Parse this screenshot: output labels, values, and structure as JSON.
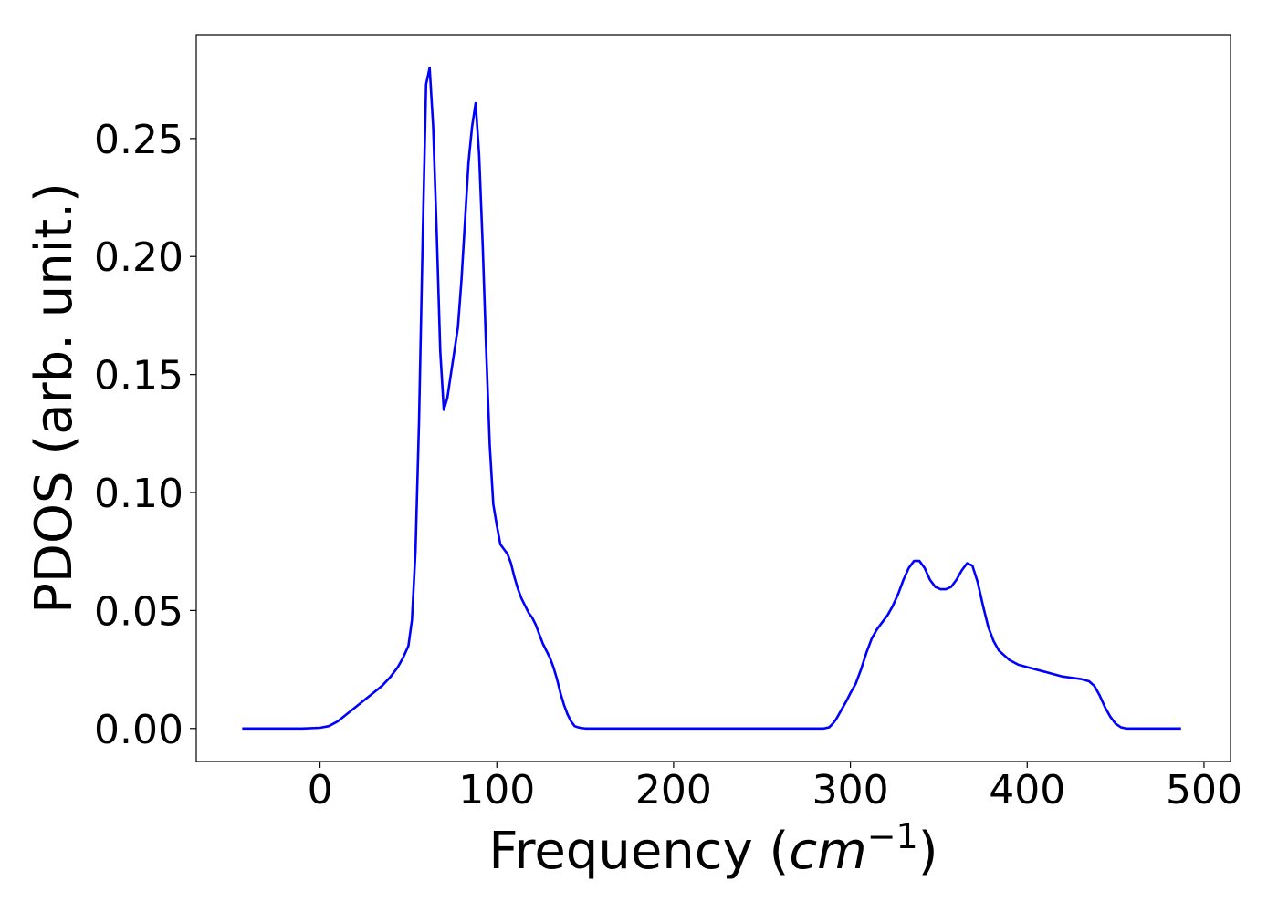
{
  "chart_data": {
    "type": "line",
    "title": "",
    "xlabel": {
      "prefix": "Frequency (",
      "unit_base": "cm",
      "unit_exponent": "−1",
      "suffix": ")"
    },
    "ylabel": "PDOS (arb. unit.)",
    "xlim": [
      -70,
      515
    ],
    "ylim": [
      -0.014,
      0.294
    ],
    "x_ticks": [
      0,
      100,
      200,
      300,
      400,
      500
    ],
    "x_tick_labels": [
      "0",
      "100",
      "200",
      "300",
      "400",
      "500"
    ],
    "y_ticks": [
      0.0,
      0.05,
      0.1,
      0.15,
      0.2,
      0.25
    ],
    "y_tick_labels": [
      "0.00",
      "0.05",
      "0.10",
      "0.15",
      "0.20",
      "0.25"
    ],
    "grid": false,
    "legend": null,
    "series": [
      {
        "color": "#0000ff",
        "x": [
          -44,
          -10,
          0,
          5,
          10,
          15,
          20,
          25,
          30,
          35,
          40,
          44,
          47,
          50,
          52,
          54,
          56,
          58,
          60,
          62,
          64,
          66,
          68,
          70,
          72,
          74,
          76,
          78,
          80,
          82,
          84,
          86,
          88,
          90,
          92,
          94,
          96,
          98,
          100,
          102,
          104,
          106,
          108,
          110,
          112,
          114,
          116,
          118,
          120,
          122,
          124,
          126,
          128,
          130,
          132,
          134,
          136,
          138,
          140,
          142,
          144,
          146,
          148,
          150,
          155,
          160,
          200,
          250,
          285,
          288,
          290,
          292,
          295,
          298,
          300,
          303,
          306,
          309,
          312,
          315,
          318,
          321,
          324,
          327,
          330,
          333,
          336,
          339,
          342,
          345,
          348,
          351,
          354,
          357,
          360,
          363,
          366,
          369,
          372,
          375,
          378,
          381,
          384,
          387,
          390,
          395,
          400,
          405,
          410,
          415,
          420,
          425,
          430,
          435,
          438,
          441,
          444,
          447,
          450,
          453,
          456,
          460,
          470,
          480,
          487
        ],
        "y": [
          0.0,
          0.0,
          0.0003,
          0.001,
          0.003,
          0.006,
          0.009,
          0.012,
          0.015,
          0.018,
          0.022,
          0.026,
          0.03,
          0.035,
          0.046,
          0.075,
          0.13,
          0.205,
          0.273,
          0.28,
          0.255,
          0.21,
          0.16,
          0.135,
          0.14,
          0.15,
          0.16,
          0.17,
          0.19,
          0.215,
          0.24,
          0.255,
          0.265,
          0.243,
          0.205,
          0.16,
          0.12,
          0.095,
          0.086,
          0.078,
          0.076,
          0.074,
          0.07,
          0.064,
          0.059,
          0.055,
          0.052,
          0.049,
          0.047,
          0.044,
          0.04,
          0.036,
          0.033,
          0.03,
          0.026,
          0.021,
          0.015,
          0.01,
          0.006,
          0.003,
          0.001,
          0.0005,
          0.0002,
          0.0,
          0.0,
          0.0,
          0.0,
          0.0,
          0.0,
          0.0005,
          0.002,
          0.004,
          0.008,
          0.012,
          0.015,
          0.019,
          0.025,
          0.032,
          0.038,
          0.042,
          0.045,
          0.048,
          0.052,
          0.057,
          0.063,
          0.068,
          0.071,
          0.071,
          0.068,
          0.063,
          0.06,
          0.059,
          0.059,
          0.06,
          0.063,
          0.067,
          0.07,
          0.069,
          0.062,
          0.052,
          0.043,
          0.037,
          0.033,
          0.031,
          0.029,
          0.027,
          0.026,
          0.025,
          0.024,
          0.023,
          0.022,
          0.0215,
          0.021,
          0.02,
          0.018,
          0.014,
          0.009,
          0.005,
          0.002,
          0.0005,
          0.0,
          0.0,
          0.0,
          0.0,
          0.0
        ]
      }
    ]
  }
}
